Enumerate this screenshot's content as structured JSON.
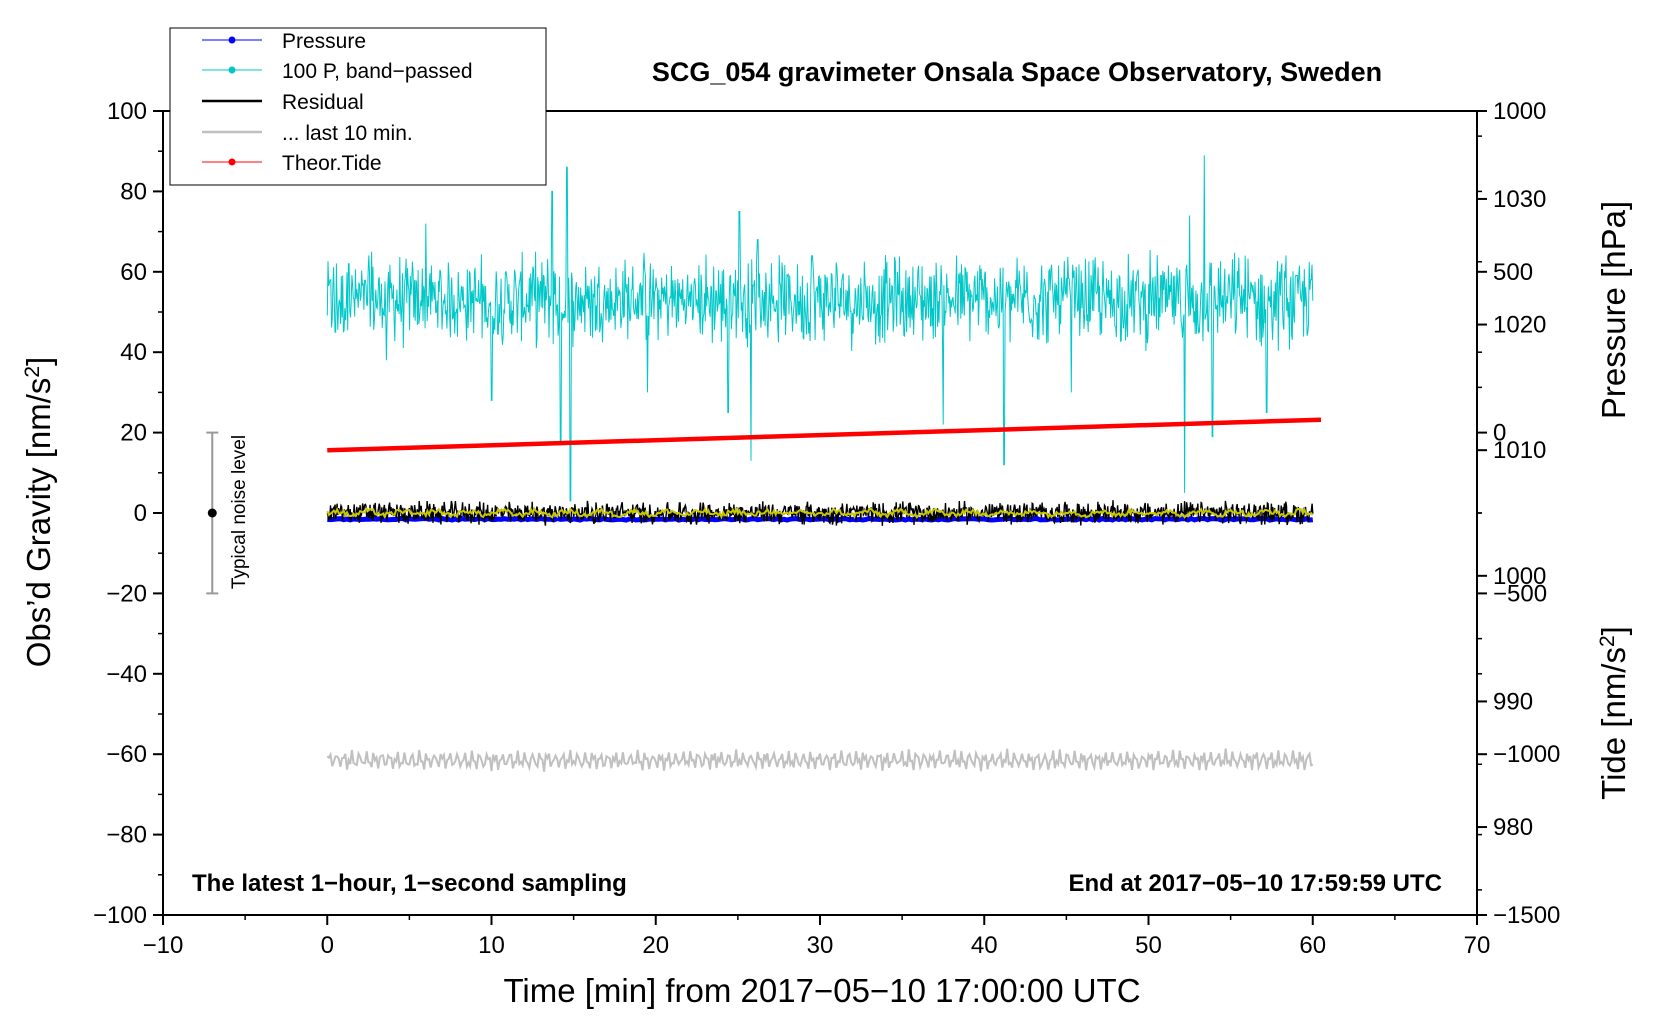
{
  "chart_data": {
    "type": "line",
    "title": "SCG_054 gravimeter Onsala Space Observatory, Sweden",
    "xlabel": "Time [min] from 2017−05−10 17:00:00 UTC",
    "ylabel_left": "Obs’d Gravity [nm/s",
    "ylabel_left_sup": "2",
    "ylabel_left_end": "]",
    "ylabel_right_pressure": "Pressure [hPa]",
    "ylabel_right_tide": "Tide [nm/s",
    "ylabel_right_tide_sup": "2",
    "ylabel_right_tide_end": "]",
    "xlim": [
      -10,
      70
    ],
    "ylim_left": [
      -100,
      100
    ],
    "x_ticks": [
      "−10",
      "0",
      "10",
      "20",
      "30",
      "40",
      "50",
      "60",
      "70"
    ],
    "y_ticks_left": [
      "100",
      "80",
      "60",
      "40",
      "20",
      "0",
      "−20",
      "−40",
      "−60",
      "−80",
      "−100"
    ],
    "y_ticks_pressure": [
      "1030",
      "1020",
      "1010",
      "1000",
      "990",
      "980"
    ],
    "y_ticks_tide": [
      "1000",
      "500",
      "0",
      "−500",
      "−1000",
      "−1500"
    ],
    "pressure_axis_range": [
      973,
      1037
    ],
    "tide_axis_range": [
      -1500,
      1000
    ],
    "annotation_left": "The latest 1−hour, 1−second sampling",
    "annotation_right": "End at 2017−05−10 17:59:59 UTC",
    "noise_label": "Typical noise level",
    "noise_bar": {
      "x": -7,
      "y_low": -20,
      "y_high": 20,
      "center": 0
    },
    "legend": [
      {
        "label": "Pressure",
        "color": "#0000ff",
        "marker": true
      },
      {
        "label": "100 P, band−passed",
        "color": "#00c8c8",
        "marker": true
      },
      {
        "label": "Residual",
        "color": "#000000",
        "marker": false
      },
      {
        "label": "... last 10 min.",
        "color": "#c0c0c0",
        "marker": false
      },
      {
        "label": "Theor.Tide",
        "color": "#ff0000",
        "marker": true
      }
    ],
    "series": [
      {
        "name": "Pressure",
        "axis": "pressure",
        "x_range": [
          0,
          60
        ],
        "level_hPa": 1004.5,
        "color": "#0000ff"
      },
      {
        "name": "100 P, band−passed",
        "axis": "gravity",
        "x_range": [
          0,
          60
        ],
        "center": 53,
        "typical_amplitude": 10,
        "peak_max": 89,
        "peak_min": 5,
        "color": "#00c8c8"
      },
      {
        "name": "Residual",
        "axis": "gravity",
        "x_range": [
          0,
          60
        ],
        "center": 0,
        "typical_amplitude": 2.5,
        "color": "#000000"
      },
      {
        "name": "Residual (smoothed)",
        "axis": "gravity",
        "x_range": [
          0,
          60
        ],
        "center": 0,
        "color": "#c8c800"
      },
      {
        "name": "... last 10 min.",
        "axis": "gravity",
        "x_range": [
          0,
          60
        ],
        "center": -61.5,
        "typical_amplitude": 2.5,
        "color": "#c0c0c0"
      },
      {
        "name": "Theor.Tide",
        "axis": "tide",
        "x": [
          0,
          60.5
        ],
        "y": [
          -55,
          40
        ],
        "color": "#ff0000"
      }
    ]
  }
}
